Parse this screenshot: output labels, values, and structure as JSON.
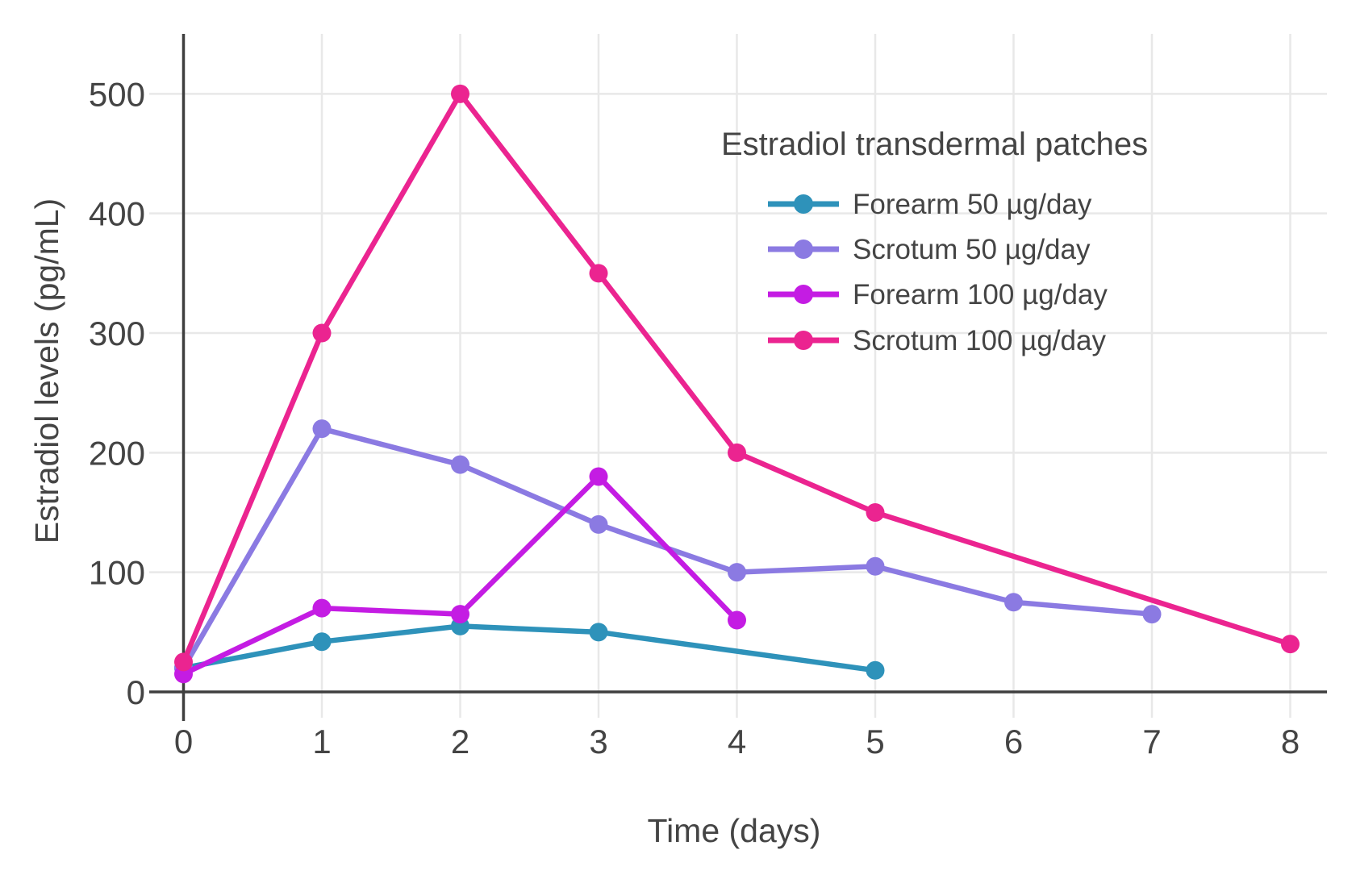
{
  "chart_data": {
    "type": "line",
    "title": "Estradiol transdermal patches",
    "xlabel": "Time (days)",
    "ylabel": "Estradiol levels (pg/mL)",
    "xlim": [
      0,
      8.45
    ],
    "ylim": [
      0,
      550
    ],
    "x_ticks": [
      0,
      1,
      2,
      3,
      4,
      5,
      6,
      7,
      8
    ],
    "y_ticks": [
      0,
      100,
      200,
      300,
      400,
      500
    ],
    "grid": true,
    "legend_position": "inside-top-right",
    "series": [
      {
        "name": "Forearm 50 µg/day",
        "color": "#2E92BA",
        "x": [
          0,
          1,
          2,
          3,
          5
        ],
        "y": [
          20,
          42,
          55,
          50,
          18
        ]
      },
      {
        "name": "Scrotum 50 µg/day",
        "color": "#8B7AE2",
        "x": [
          0,
          1,
          2,
          3,
          4,
          5,
          6,
          7
        ],
        "y": [
          20,
          220,
          190,
          140,
          100,
          105,
          75,
          65
        ]
      },
      {
        "name": "Forearm 100 µg/day",
        "color": "#C41CE3",
        "x": [
          0,
          1,
          2,
          3,
          4
        ],
        "y": [
          15,
          70,
          65,
          180,
          60
        ]
      },
      {
        "name": "Scrotum 100 µg/day",
        "color": "#EB2490",
        "x": [
          0,
          1,
          2,
          3,
          4,
          5,
          8
        ],
        "y": [
          25,
          300,
          500,
          350,
          200,
          150,
          40
        ]
      }
    ],
    "colors": {
      "background": "#ffffff",
      "grid": "#E8E8E8",
      "axis_line": "#3F3F3F",
      "text": "#444444"
    }
  }
}
